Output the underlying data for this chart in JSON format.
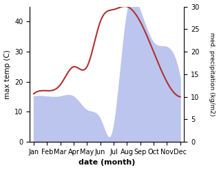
{
  "months": [
    "Jan",
    "Feb",
    "Mar",
    "Apr",
    "May",
    "Jun",
    "Jul",
    "Aug",
    "Sep",
    "Oct",
    "Nov",
    "Dec"
  ],
  "temp": [
    16,
    17,
    19,
    25,
    25,
    40,
    44,
    45,
    40,
    30,
    20,
    15
  ],
  "precip": [
    10,
    10,
    10,
    10,
    7,
    5,
    3,
    28,
    29,
    22,
    21,
    14
  ],
  "temp_color": "#b03030",
  "precip_fill_color": "#bcc5ee",
  "title": "",
  "xlabel": "date (month)",
  "ylabel_left": "max temp (C)",
  "ylabel_right": "med. precipitation (kg/m2)",
  "ylim_left": [
    0,
    45
  ],
  "ylim_right": [
    0,
    30
  ],
  "yticks_left": [
    0,
    10,
    20,
    30,
    40
  ],
  "yticks_right": [
    0,
    5,
    10,
    15,
    20,
    25,
    30
  ],
  "background_color": "#ffffff",
  "plot_bg_color": "#ffffff"
}
